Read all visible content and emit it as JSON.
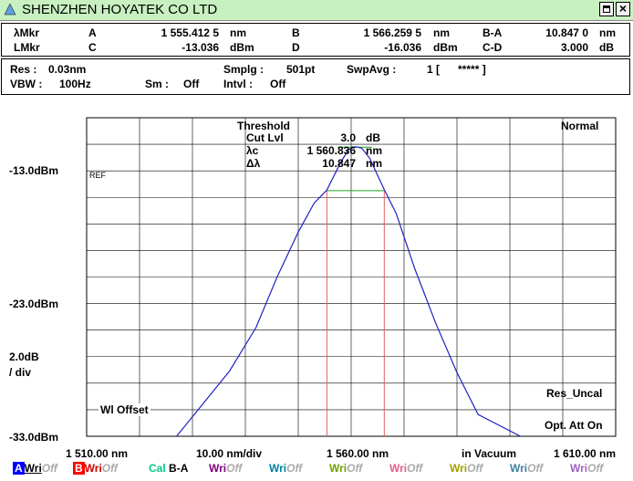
{
  "window": {
    "title": "SHENZHEN HOYATEK CO LTD"
  },
  "markers": {
    "row1": [
      {
        "key": "λMkr"
      },
      {
        "name": "A",
        "value": "1 555.412 5",
        "unit": "nm"
      },
      {
        "name": "B",
        "value": "1 566.259 5",
        "unit": "nm"
      },
      {
        "name": "B-A",
        "value": "10.847 0",
        "unit": "nm"
      }
    ],
    "row2": [
      {
        "key": "LMkr"
      },
      {
        "name": "C",
        "value": "-13.036",
        "unit": "dBm"
      },
      {
        "name": "D",
        "value": "-16.036",
        "unit": "dBm"
      },
      {
        "name": "C-D",
        "value": "3.000",
        "unit": "dB"
      }
    ]
  },
  "settings": {
    "res_label": "Res :",
    "res_value": "0.03nm",
    "smplg_label": "Smplg :",
    "smplg_value": "501pt",
    "swpavg_label": "SwpAvg :",
    "swpavg_value": "1 [      ***** ]",
    "vbw_label": "VBW :",
    "vbw_value": "100Hz",
    "sm_label": "Sm :",
    "sm_value": "Off",
    "intvl_label": "Intvl :",
    "intvl_value": "Off"
  },
  "analysis": {
    "title": "Threshold",
    "rows": [
      {
        "label": "Cut Lvl",
        "value": "3.0",
        "unit": "dB"
      },
      {
        "label": "λc",
        "value": "1 560.836",
        "unit": "nm"
      },
      {
        "label": "Δλ",
        "value": "10.847",
        "unit": "nm"
      }
    ]
  },
  "graph": {
    "mode": "Normal",
    "ref_label": "REF",
    "y_top": "-13.0dBm",
    "y_mid": "-23.0dBm",
    "y_bottom": "-33.0dBm",
    "scale_value": "2.0dB",
    "scale_unit": "/ div",
    "wl_offset": "Wl Offset",
    "res_uncal": "Res_Uncal",
    "opt_att": "Opt. Att On",
    "x_start": "1 510.00 nm",
    "x_div": "10.00 nm/div",
    "x_center": "1 560.00 nm",
    "x_medium": "in Vacuum",
    "x_stop": "1 610.00 nm",
    "colors": {
      "trace": "#2020c0",
      "marker_ab": "#e06060",
      "threshold": "#20a020",
      "grid": "#000000"
    }
  },
  "chart_data": {
    "type": "line",
    "xlim": [
      1510,
      1610
    ],
    "ylim": [
      -33,
      -13
    ],
    "xlabel": "",
    "ylabel": "",
    "series": [
      {
        "x": [
          1527,
          1537,
          1542,
          1546,
          1550,
          1553,
          1555.4,
          1558,
          1559.5,
          1560.8,
          1562,
          1563.5,
          1566.3,
          1568.5,
          1572,
          1576,
          1580,
          1584,
          1592
        ],
        "y": [
          -33,
          -28.5,
          -25.5,
          -22,
          -18.9,
          -16.9,
          -16.0,
          -14.1,
          -13.2,
          -13.0,
          -13.1,
          -13.8,
          -16.0,
          -17.6,
          -21.4,
          -25.2,
          -28.6,
          -31.5,
          -33.5
        ]
      }
    ],
    "markers": {
      "A": 1555.4125,
      "B": 1566.2595,
      "level_C": -13.036,
      "level_D": -16.036
    }
  },
  "traces": [
    {
      "label": "A",
      "badge": "#0000ff",
      "text": "Wri",
      "text_color": "#000000",
      "state": "Off"
    },
    {
      "label": "B",
      "badge": "#ff0000",
      "text": "Wri",
      "text_color": "#cc0000",
      "state": "Off"
    },
    {
      "label": "Cal",
      "text": "B-A",
      "text_color": "#00cc88"
    },
    {
      "label": "",
      "text": "Wri",
      "text_color": "#800080",
      "state": "Off"
    },
    {
      "label": "",
      "text": "Wri",
      "text_color": "#0080a0",
      "state": "Off"
    },
    {
      "label": "",
      "text": "Wri",
      "text_color": "#70a000",
      "state": "Off"
    },
    {
      "label": "",
      "text": "Wri",
      "text_color": "#e0608a",
      "state": "Off"
    },
    {
      "label": "",
      "text": "Wri",
      "text_color": "#a0a000",
      "state": "Off"
    },
    {
      "label": "",
      "text": "Wri",
      "text_color": "#4080a0",
      "state": "Off"
    },
    {
      "label": "",
      "text": "Wri",
      "text_color": "#a060c0",
      "state": "Off"
    }
  ]
}
